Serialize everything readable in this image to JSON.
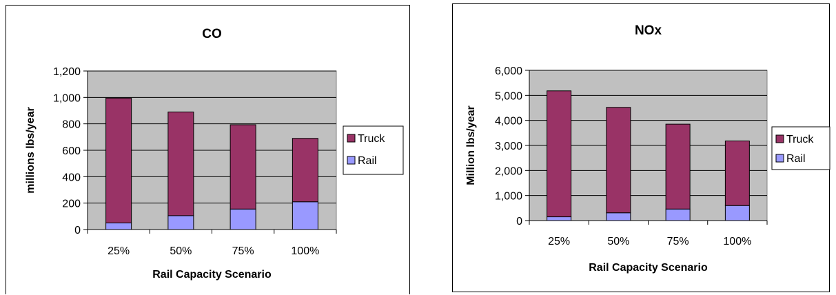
{
  "colors": {
    "truck": "#993366",
    "rail": "#9999FF",
    "plot_bg": "#C0C0C0"
  },
  "chart_data": [
    {
      "type": "bar",
      "stacked": true,
      "title": "CO",
      "xlabel": "Rail Capacity Scenario",
      "ylabel": "millions lbs/year",
      "categories": [
        "25%",
        "50%",
        "75%",
        "100%"
      ],
      "ylim": [
        0,
        1200
      ],
      "yticks": [
        "0",
        "200",
        "400",
        "600",
        "800",
        "1,000",
        "1,200"
      ],
      "grid": true,
      "legend_position": "right",
      "series": [
        {
          "name": "Rail",
          "values": [
            50,
            105,
            155,
            210
          ]
        },
        {
          "name": "Truck",
          "values": [
            945,
            785,
            638,
            480
          ]
        }
      ]
    },
    {
      "type": "bar",
      "stacked": true,
      "title": "NOx",
      "xlabel": "Rail Capacity Scenario",
      "ylabel": "Million lbs/year",
      "categories": [
        "25%",
        "50%",
        "75%",
        "100%"
      ],
      "ylim": [
        0,
        6000
      ],
      "yticks": [
        "0",
        "1,000",
        "2,000",
        "3,000",
        "4,000",
        "5,000",
        "6,000"
      ],
      "grid": true,
      "legend_position": "right",
      "series": [
        {
          "name": "Rail",
          "values": [
            150,
            310,
            460,
            600
          ]
        },
        {
          "name": "Truck",
          "values": [
            5030,
            4210,
            3390,
            2580
          ]
        }
      ]
    }
  ]
}
